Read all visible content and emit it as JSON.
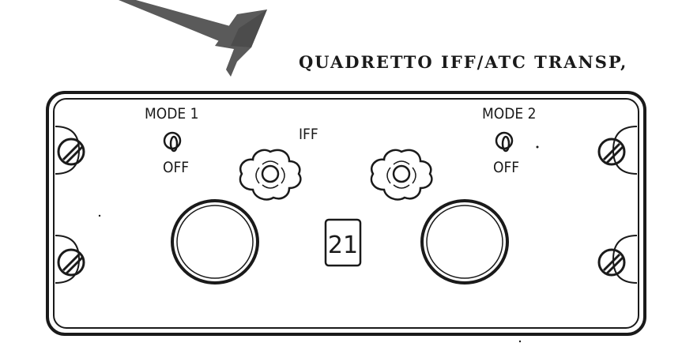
{
  "title": "QUADRETTO IFF/ATC TRANSP,",
  "panel": {
    "center_label": "IFF",
    "panel_number": "21",
    "switches": [
      {
        "label": "MODE 1",
        "state": "OFF"
      },
      {
        "label": "MODE 2",
        "state": "OFF"
      }
    ]
  },
  "colors": {
    "ink": "#1a1a1a",
    "arrow": "#5a5a5a",
    "background": "#ffffff"
  }
}
